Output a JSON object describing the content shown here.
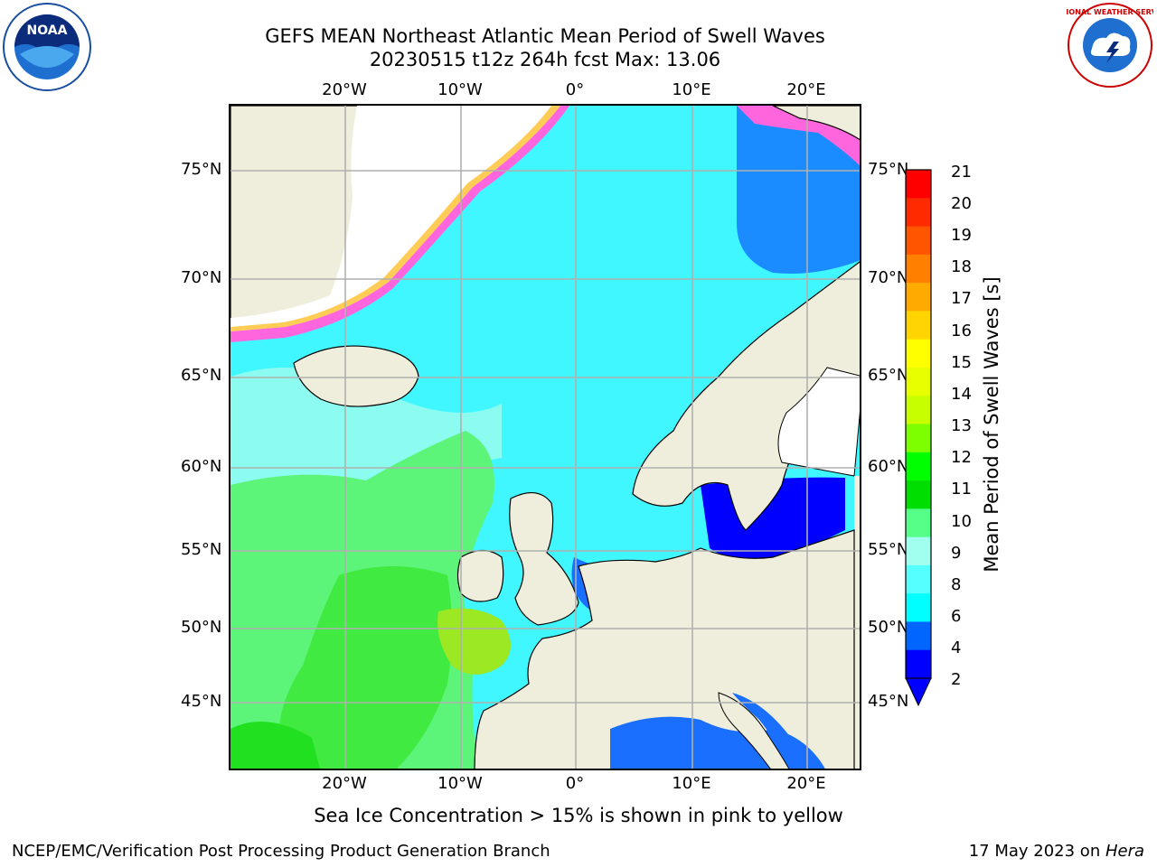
{
  "title": {
    "line1": "GEFS MEAN Northeast Atlantic Mean Period of Swell Waves",
    "line2": "20230515 t12z 264h fcst   Max: 13.06"
  },
  "lon_labels": [
    "20°W",
    "10°W",
    "0°",
    "10°E",
    "20°E"
  ],
  "lat_labels": [
    "75°N",
    "70°N",
    "65°N",
    "60°N",
    "55°N",
    "50°N",
    "45°N"
  ],
  "colorbar": {
    "label": "Mean Period of Swell Waves [s]",
    "ticks": [
      "21",
      "20",
      "19",
      "18",
      "17",
      "16",
      "15",
      "14",
      "13",
      "12",
      "11",
      "10",
      "9",
      "8",
      "6",
      "4",
      "2"
    ],
    "colors": [
      "#ff0000",
      "#ff2a00",
      "#ff5500",
      "#ff8000",
      "#ffaa00",
      "#ffd400",
      "#ffff00",
      "#e8ff00",
      "#c8ff00",
      "#7dff00",
      "#00ff00",
      "#00dd00",
      "#55ff88",
      "#a0ffee",
      "#55ffff",
      "#00ffff",
      "#0066ff",
      "#0000ff"
    ]
  },
  "caption": "Sea Ice Concentration > 15% is shown in pink to yellow",
  "footer": {
    "left": "NCEP/EMC/Verification Post Processing Product Generation Branch",
    "right_prefix": "17 May 2023 on ",
    "right_machine": "Hera"
  },
  "logos": {
    "noaa": "NOAA",
    "nws": "NATIONAL WEATHER SERVICE"
  }
}
